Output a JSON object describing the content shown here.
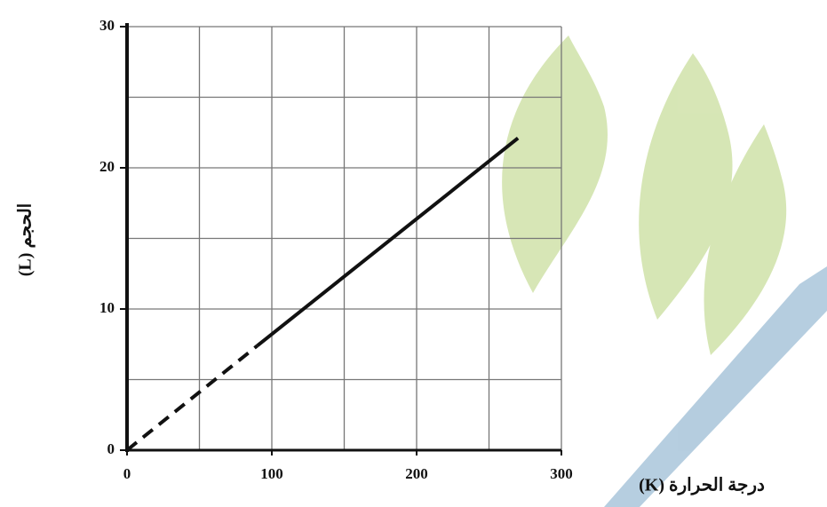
{
  "chart_data": {
    "type": "line",
    "x_label": "درجة الحرارة (K)",
    "y_label": "الحجم (L)",
    "x": [
      0,
      90,
      270
    ],
    "series": [
      {
        "style": "dashed",
        "color": "#111111",
        "values": [
          0,
          7.4,
          null
        ]
      },
      {
        "style": "solid",
        "color": "#111111",
        "values": [
          null,
          7.4,
          22.1
        ]
      }
    ],
    "xlim": [
      0,
      300
    ],
    "ylim": [
      0,
      30
    ],
    "xticks": [
      0,
      100,
      200,
      300
    ],
    "yticks": [
      0,
      10,
      20,
      30
    ],
    "x_minor_ticks": [
      50,
      150,
      250
    ],
    "y_minor_ticks": [
      5,
      15,
      25
    ],
    "grid": true
  }
}
